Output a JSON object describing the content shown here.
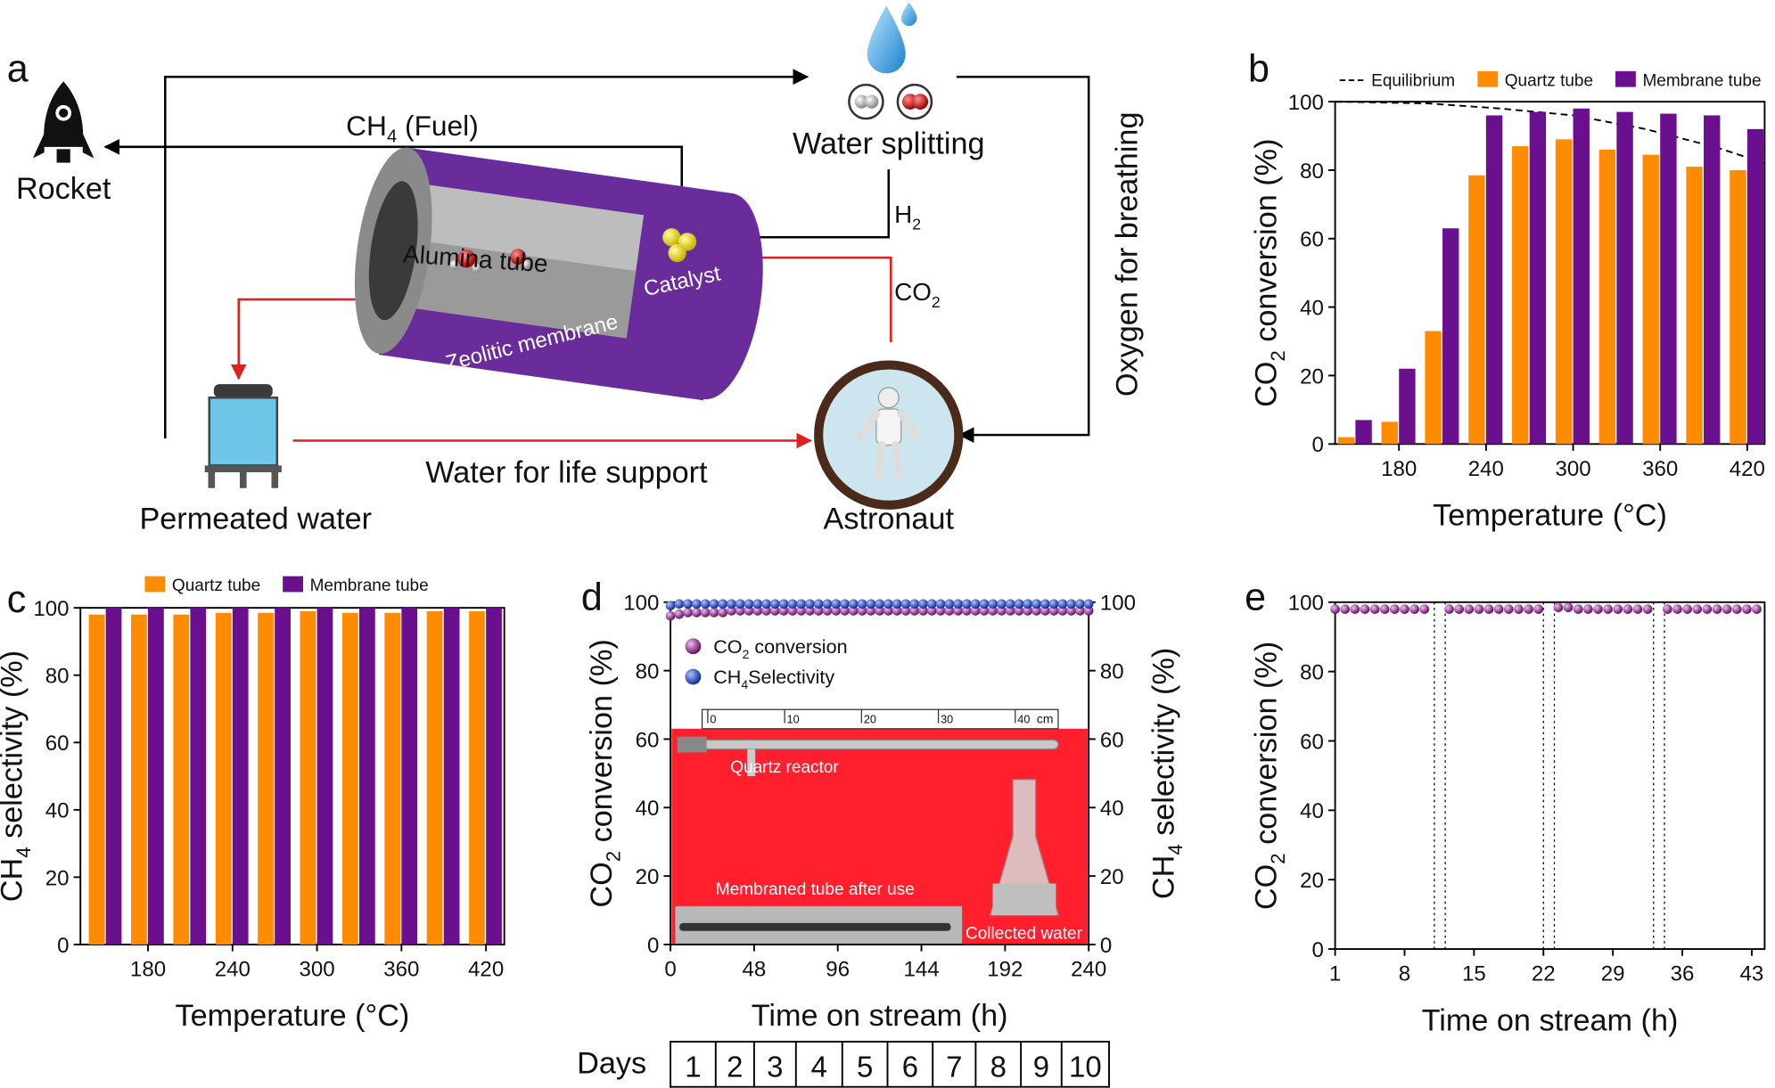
{
  "diagram": {
    "panel": "a",
    "rocket": "Rocket",
    "fuel": [
      "CH",
      "4",
      " (Fuel)"
    ],
    "water_splitting": "Water splitting",
    "h2": [
      "H",
      "2"
    ],
    "co2": [
      "CO",
      "2"
    ],
    "alumina": "Alumina tube",
    "catalyst": "Catalyst",
    "membrane": "Zeolitic membrane",
    "oxygen": "Oxygen for breathing",
    "permeated": "Permeated water",
    "life_support": "Water for life support",
    "astronaut": "Astronaut"
  },
  "chart_data": [
    {
      "panel": "b",
      "type": "bar",
      "x": [
        150,
        180,
        210,
        240,
        270,
        300,
        330,
        360,
        390,
        420
      ],
      "xlim": [
        136,
        432
      ],
      "xticks": [
        180,
        240,
        300,
        360,
        420
      ],
      "ylim": [
        0,
        100
      ],
      "yticks": [
        0,
        20,
        40,
        60,
        80,
        100
      ],
      "xlabel": "Temperature (°C)",
      "ylabel": [
        "CO",
        "2",
        " conversion (%)"
      ],
      "series": [
        {
          "name": "Equilibrium",
          "type": "line",
          "color": "#000000",
          "x": [
            136,
            200,
            250,
            300,
            350,
            400,
            432
          ],
          "values": [
            100,
            99.5,
            98,
            96,
            92,
            86.5,
            82
          ]
        },
        {
          "name": "Quartz tube",
          "color": "#ff8c00",
          "values": [
            2,
            6.5,
            33,
            78.5,
            87,
            89,
            86,
            84.5,
            81,
            80
          ]
        },
        {
          "name": "Membrane tube",
          "color": "#6a0f8e",
          "values": [
            7,
            22,
            63,
            96,
            97,
            98,
            97,
            96.5,
            96,
            92
          ]
        }
      ]
    },
    {
      "panel": "c",
      "type": "bar",
      "x": [
        150,
        180,
        210,
        240,
        270,
        300,
        330,
        360,
        390,
        420
      ],
      "xlim": [
        132,
        433
      ],
      "xticks": [
        180,
        240,
        300,
        360,
        420
      ],
      "ylim": [
        0,
        100
      ],
      "yticks": [
        0,
        20,
        40,
        60,
        80,
        100
      ],
      "xlabel": "Temperature (°C)",
      "ylabel": [
        "CH",
        "4",
        " selectivity (%)"
      ],
      "series": [
        {
          "name": "Quartz tube",
          "color": "#ff8c00",
          "values": [
            98,
            98,
            98,
            98.5,
            98.5,
            99,
            98.5,
            98.5,
            99,
            99
          ]
        },
        {
          "name": "Membrane tube",
          "color": "#6a0f8e",
          "values": [
            100,
            100,
            100,
            100,
            100,
            100,
            100,
            100,
            100,
            100
          ]
        }
      ]
    },
    {
      "panel": "d",
      "type": "scatter",
      "x": [
        0,
        5,
        10,
        15,
        20,
        25,
        30,
        35,
        40,
        45,
        50,
        55,
        60,
        65,
        70,
        75,
        80,
        85,
        90,
        95,
        100,
        105,
        110,
        115,
        120,
        125,
        130,
        135,
        140,
        145,
        150,
        155,
        160,
        165,
        170,
        175,
        180,
        185,
        190,
        195,
        200,
        205,
        210,
        215,
        220,
        225,
        230,
        235,
        240
      ],
      "xlim": [
        0,
        240
      ],
      "xticks": [
        0,
        48,
        96,
        144,
        192,
        240
      ],
      "ylim": [
        0,
        100
      ],
      "yticks": [
        0,
        20,
        40,
        60,
        80,
        100
      ],
      "y2lim": [
        0,
        100
      ],
      "y2ticks": [
        0,
        20,
        40,
        60,
        80,
        100
      ],
      "xlabel": "Time on stream (h)",
      "ylabel": [
        "CO",
        "2",
        " conversion (%)"
      ],
      "y2label": [
        "CH",
        "4",
        " selectivity (%)"
      ],
      "series": [
        {
          "name": [
            "CO",
            "2",
            " conversion"
          ],
          "color": "#8b1a8b",
          "values": [
            96,
            96.5,
            97,
            97,
            97,
            97,
            97,
            97.5,
            97.5,
            97.5,
            97.5,
            97.5,
            97.5,
            97.5,
            97.5,
            97.5,
            97.5,
            97.5,
            97.5,
            97.5,
            97.5,
            97.5,
            97.5,
            97.5,
            97.5,
            97.5,
            97.5,
            97.5,
            97.5,
            97.5,
            97.5,
            97.5,
            97.5,
            97.5,
            97.5,
            97.5,
            97.5,
            97.5,
            97.5,
            97.5,
            97.5,
            97.5,
            97.5,
            97.5,
            97.5,
            97.5,
            97.5,
            97.5,
            97.5
          ]
        },
        {
          "name": [
            "CH",
            "4",
            "Selectivity"
          ],
          "color": "#1f3fbf",
          "axis": "y2",
          "values": [
            99,
            99.5,
            99.5,
            99.5,
            99.5,
            99.5,
            99.5,
            99.5,
            99.5,
            99.5,
            99.5,
            99.5,
            99.5,
            99.5,
            99.5,
            99.5,
            99.5,
            99.5,
            99.5,
            99.5,
            99.5,
            99.5,
            99.5,
            99.5,
            99.5,
            99.5,
            99.5,
            99.5,
            99.5,
            99.5,
            99.5,
            99.5,
            99.5,
            99.5,
            99.5,
            99.5,
            99.5,
            99.5,
            99.5,
            99.5,
            99.5,
            99.5,
            99.5,
            99.5,
            99.5,
            99.5,
            99.5,
            99.5,
            99.5
          ]
        }
      ],
      "inset": {
        "ruler": [
          0,
          10,
          20,
          30,
          40
        ],
        "unit": "cm",
        "reactor": "Quartz reactor",
        "tube": "Membraned tube after use",
        "water": "Collected water"
      }
    },
    {
      "panel": "e",
      "type": "scatter",
      "x": [
        1,
        2,
        3,
        4,
        5,
        6,
        7,
        8,
        9,
        10,
        12.5,
        13.5,
        14.5,
        15.5,
        16.5,
        17.5,
        18.5,
        19.5,
        20.5,
        21.5,
        23.5,
        24.5,
        25.5,
        26.5,
        27.5,
        28.5,
        29.5,
        30.5,
        31.5,
        32.5,
        34.5,
        35.5,
        36.5,
        37.5,
        38.5,
        39.5,
        40.5,
        41.5,
        42.5,
        43.5
      ],
      "xlim": [
        1,
        44.3
      ],
      "xticks": [
        1,
        8,
        15,
        22,
        29,
        36,
        43
      ],
      "ylim": [
        0,
        100
      ],
      "yticks": [
        0,
        20,
        40,
        60,
        80,
        100
      ],
      "xlabel": "Time on stream (h)",
      "ylabel": [
        "CO",
        "2",
        " conversion (%)"
      ],
      "vlines": [
        11,
        12.1,
        22,
        23.1,
        33.1,
        34.2
      ],
      "series": [
        {
          "color": "#8b1a8b",
          "values": [
            98,
            98,
            98,
            98,
            98,
            98,
            98,
            98,
            98,
            98,
            98,
            98,
            98,
            98,
            98,
            98,
            98,
            98,
            98,
            98,
            98.5,
            98.5,
            98,
            98,
            98,
            98,
            98,
            98,
            98,
            98,
            98,
            98,
            98,
            98,
            98,
            98,
            98,
            98,
            98,
            98
          ]
        }
      ]
    }
  ],
  "days": {
    "label": "Days",
    "values": [
      1,
      2,
      3,
      4,
      5,
      6,
      7,
      8,
      9,
      10
    ]
  }
}
